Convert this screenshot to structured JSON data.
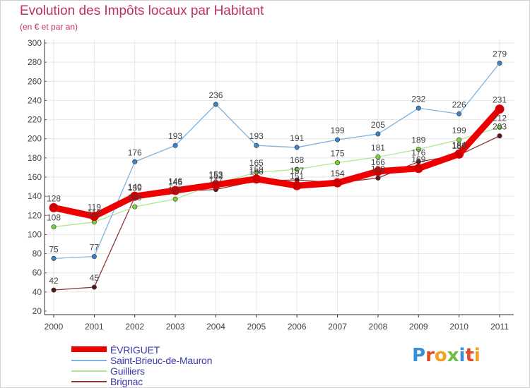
{
  "chart_data": {
    "type": "line",
    "title": "Evolution des Impôts locaux par Habitant",
    "subtitle": "(en € et par an)",
    "xlabel": "",
    "ylabel": "",
    "categories": [
      "2000",
      "2001",
      "2002",
      "2003",
      "2004",
      "2005",
      "2006",
      "2007",
      "2008",
      "2009",
      "2010",
      "2011"
    ],
    "ylim": [
      20,
      300
    ],
    "yticks": [
      20,
      40,
      60,
      80,
      100,
      120,
      140,
      160,
      180,
      200,
      220,
      240,
      260,
      280,
      300
    ],
    "grid": true,
    "legend_position": "bottom-left",
    "series": [
      {
        "name": "ÉVRIGUET",
        "color": "#ee0000",
        "line_color": "#ee0000",
        "marker_color": "#cc0000",
        "values": [
          128,
          119,
          140,
          146,
          152,
          158,
          151,
          154,
          166,
          169,
          184,
          231
        ]
      },
      {
        "name": "Saint-Brieuc-de-Mauron",
        "color": "#4a90d9",
        "line_color": "#7fb3e0",
        "marker_color": "#3a85c9",
        "values": [
          75,
          77,
          176,
          193,
          236,
          193,
          191,
          199,
          205,
          232,
          226,
          279
        ]
      },
      {
        "name": "Guilliers",
        "color": "#8fe04a",
        "line_color": "#b0e890",
        "marker_color": "#78d43c",
        "values": [
          108,
          113,
          129,
          137,
          153,
          165,
          168,
          175,
          181,
          189,
          199,
          212
        ]
      },
      {
        "name": "Brignac",
        "color": "#6b1f1f",
        "line_color": "#8a3a3a",
        "marker_color": "#5a1818",
        "values": [
          42,
          45,
          139,
          145,
          147,
          156,
          157,
          154,
          159,
          176,
          183,
          203
        ]
      }
    ]
  },
  "logo": {
    "text": "Proxiti",
    "letters": [
      {
        "ch": "P",
        "color": "#3a8fd8"
      },
      {
        "ch": "r",
        "color": "#e24a2a"
      },
      {
        "ch": "o",
        "color": "#f2a020"
      },
      {
        "ch": "x",
        "color": "#6cc040"
      },
      {
        "ch": "i",
        "color": "#3a8fd8"
      },
      {
        "ch": "t",
        "color": "#e24a2a"
      },
      {
        "ch": "i",
        "color": "#f2a020"
      }
    ]
  }
}
